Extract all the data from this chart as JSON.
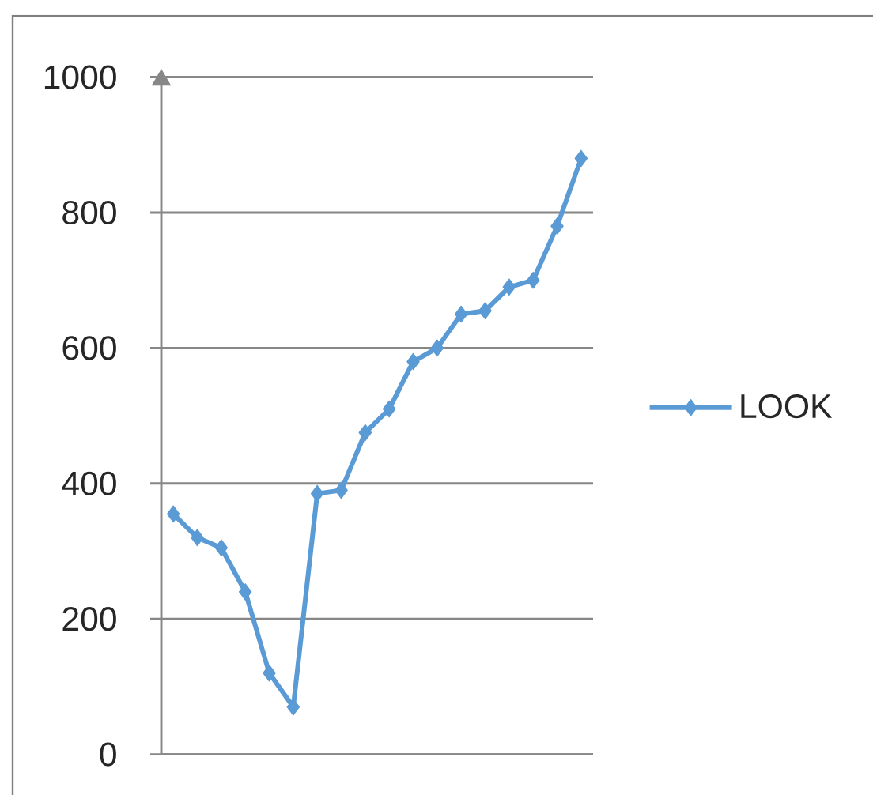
{
  "chart_data": {
    "type": "line",
    "categories": [
      null,
      null,
      null,
      null,
      null,
      null,
      null,
      null,
      null,
      null,
      null,
      null,
      null,
      null,
      null,
      null,
      null,
      null
    ],
    "series": [
      {
        "name": "LOOK",
        "color": "#5b9bd5",
        "values": [
          355,
          320,
          305,
          240,
          120,
          70,
          385,
          390,
          475,
          510,
          580,
          600,
          650,
          655,
          690,
          700,
          780,
          880
        ]
      }
    ],
    "ylim": [
      0,
      1000
    ],
    "yticks": [
      0,
      200,
      400,
      600,
      800,
      1000
    ],
    "grid": "y",
    "legend": "right",
    "marker": "diamond",
    "line_style": "solid",
    "tick_labels": "y"
  }
}
